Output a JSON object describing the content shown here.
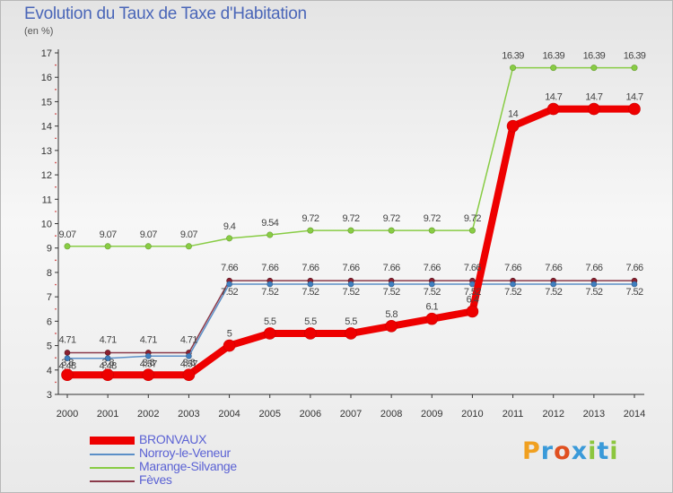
{
  "title": "Evolution du Taux de Taxe d'Habitation",
  "subtitle": "(en %)",
  "logo": {
    "text": "Proxiti",
    "colors": [
      "#f0a020",
      "#3a9ad9",
      "#e05020",
      "#3a9ad9",
      "#8cc63e",
      "#3a9ad9",
      "#8cc63e"
    ]
  },
  "chart_data": {
    "type": "line",
    "title": "Evolution du Taux de Taxe d'Habitation",
    "ylabel": "(en %)",
    "xlabel": "",
    "x": [
      2000,
      2001,
      2002,
      2003,
      2004,
      2005,
      2006,
      2007,
      2008,
      2009,
      2010,
      2011,
      2012,
      2013,
      2014
    ],
    "ylim": [
      3,
      17
    ],
    "yticks": [
      3,
      4,
      5,
      6,
      7,
      8,
      9,
      10,
      11,
      12,
      13,
      14,
      15,
      16,
      17
    ],
    "grid": false,
    "legend_position": "bottom-left",
    "series": [
      {
        "name": "BRONVAUX",
        "color": "#ee0000",
        "labels": [
          "3.8",
          "3.8",
          "3.8",
          "3.8",
          "5",
          "5.5",
          "5.5",
          "5.5",
          "5.8",
          "6.1",
          "6.4",
          "14",
          "14.7",
          "14.7",
          "14.7"
        ],
        "values": [
          3.8,
          3.8,
          3.8,
          3.8,
          5,
          5.5,
          5.5,
          5.5,
          5.8,
          6.1,
          6.4,
          14,
          14.7,
          14.7,
          14.7
        ]
      },
      {
        "name": "Norroy-le-Veneur",
        "color": "#5b8fc7",
        "labels": [
          "4.48",
          "4.48",
          "4.57",
          "4.57",
          "7.52",
          "7.52",
          "7.52",
          "7.52",
          "7.52",
          "7.52",
          "7.52",
          "7.52",
          "7.52",
          "7.52",
          "7.52"
        ],
        "values": [
          4.48,
          4.48,
          4.57,
          4.57,
          7.52,
          7.52,
          7.52,
          7.52,
          7.52,
          7.52,
          7.52,
          7.52,
          7.52,
          7.52,
          7.52
        ]
      },
      {
        "name": "Marange-Silvange",
        "color": "#88cc44",
        "labels": [
          "9.07",
          "9.07",
          "9.07",
          "9.07",
          "9.4",
          "9.54",
          "9.72",
          "9.72",
          "9.72",
          "9.72",
          "9.72",
          "16.39",
          "16.39",
          "16.39",
          "16.39"
        ],
        "values": [
          9.07,
          9.07,
          9.07,
          9.07,
          9.4,
          9.54,
          9.72,
          9.72,
          9.72,
          9.72,
          9.72,
          16.39,
          16.39,
          16.39,
          16.39
        ]
      },
      {
        "name": "Fèves",
        "color": "#8a3a4a",
        "labels": [
          "4.71",
          "4.71",
          "4.71",
          "4.71",
          "7.66",
          "7.66",
          "7.66",
          "7.66",
          "7.66",
          "7.66",
          "7.66",
          "7.66",
          "7.66",
          "7.66",
          "7.66"
        ],
        "values": [
          4.71,
          4.71,
          4.71,
          4.71,
          7.66,
          7.66,
          7.66,
          7.66,
          7.66,
          7.66,
          7.66,
          7.66,
          7.66,
          7.66,
          7.66
        ]
      }
    ]
  }
}
